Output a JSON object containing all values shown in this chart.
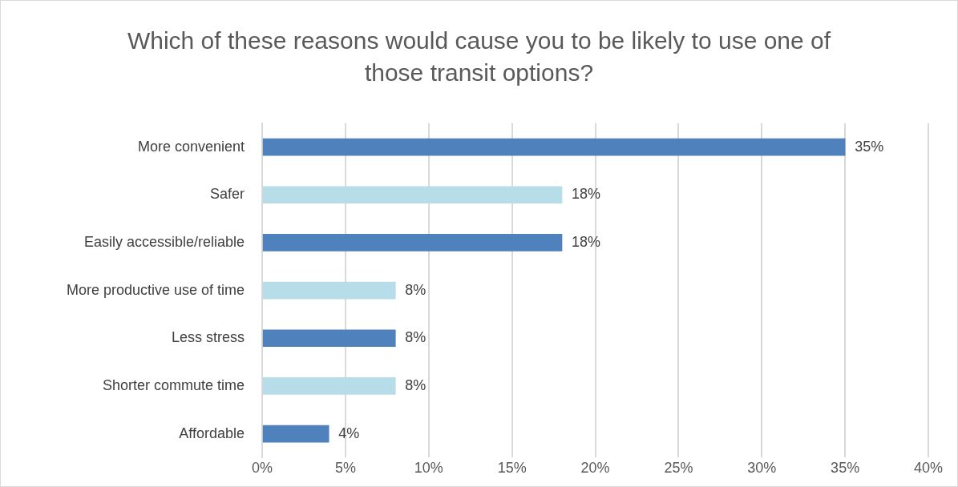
{
  "chart_data": {
    "type": "bar",
    "orientation": "horizontal",
    "title": "Which of these reasons would cause you to be likely to use one of those transit options?",
    "categories": [
      "More convenient",
      "Safer",
      "Easily accessible/reliable",
      "More productive use of time",
      "Less stress",
      "Shorter commute time",
      "Affordable"
    ],
    "values": [
      35,
      18,
      18,
      8,
      8,
      8,
      4
    ],
    "colors": [
      "#4f81bd",
      "#b7dde8",
      "#4f81bd",
      "#b7dde8",
      "#4f81bd",
      "#b7dde8",
      "#4f81bd"
    ],
    "value_labels": [
      "35%",
      "18%",
      "18%",
      "8%",
      "8%",
      "8%",
      "4%"
    ],
    "xlim": [
      0,
      40
    ],
    "xticks": [
      {
        "value": 0,
        "label": "0%"
      },
      {
        "value": 5,
        "label": "5%"
      },
      {
        "value": 10,
        "label": "10%"
      },
      {
        "value": 15,
        "label": "15%"
      },
      {
        "value": 20,
        "label": "20%"
      },
      {
        "value": 25,
        "label": "25%"
      },
      {
        "value": 30,
        "label": "30%"
      },
      {
        "value": 35,
        "label": "35%"
      },
      {
        "value": 40,
        "label": "40%"
      }
    ],
    "grid": "x",
    "legend": false
  }
}
